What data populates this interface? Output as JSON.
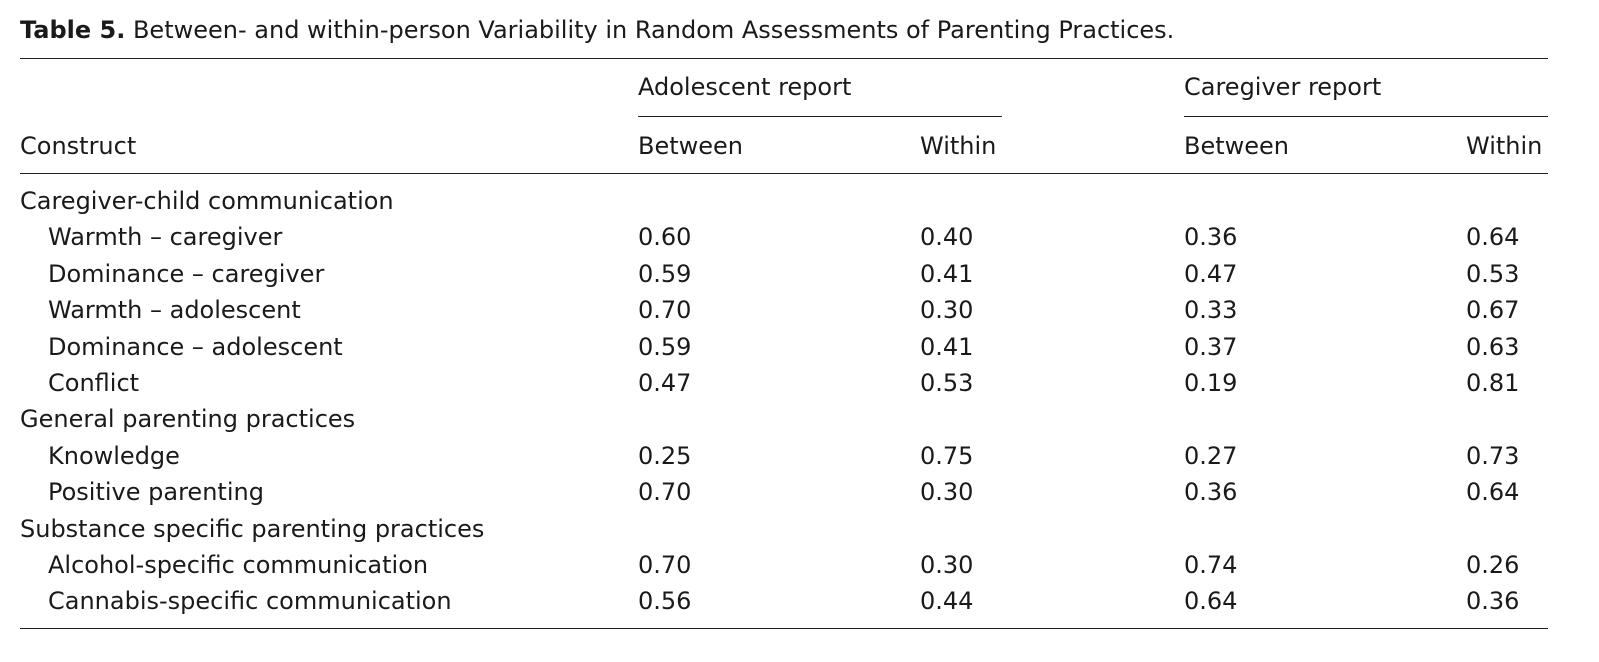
{
  "caption": {
    "label": "Table 5.",
    "text": "Between- and within-person Variability in Random Assessments of Parenting Practices."
  },
  "header": {
    "construct": "Construct",
    "groups": [
      "Adolescent report",
      "Caregiver report"
    ],
    "subcolumns": [
      "Between",
      "Within",
      "Between",
      "Within"
    ]
  },
  "rows": [
    {
      "label": "Caregiver-child communication",
      "section": true
    },
    {
      "label": "Warmth – caregiver",
      "values": [
        "0.60",
        "0.40",
        "0.36",
        "0.64"
      ]
    },
    {
      "label": "Dominance – caregiver",
      "values": [
        "0.59",
        "0.41",
        "0.47",
        "0.53"
      ]
    },
    {
      "label": "Warmth – adolescent",
      "values": [
        "0.70",
        "0.30",
        "0.33",
        "0.67"
      ]
    },
    {
      "label": "Dominance – adolescent",
      "values": [
        "0.59",
        "0.41",
        "0.37",
        "0.63"
      ]
    },
    {
      "label": "Conflict",
      "values": [
        "0.47",
        "0.53",
        "0.19",
        "0.81"
      ]
    },
    {
      "label": "General parenting practices",
      "section": true
    },
    {
      "label": "Knowledge",
      "values": [
        "0.25",
        "0.75",
        "0.27",
        "0.73"
      ]
    },
    {
      "label": "Positive parenting",
      "values": [
        "0.70",
        "0.30",
        "0.36",
        "0.64"
      ]
    },
    {
      "label": "Substance specific parenting practices",
      "section": true
    },
    {
      "label": "Alcohol-specific communication",
      "values": [
        "0.70",
        "0.30",
        "0.74",
        "0.26"
      ]
    },
    {
      "label": "Cannabis-specific communication",
      "values": [
        "0.56",
        "0.44",
        "0.64",
        "0.36"
      ]
    }
  ]
}
